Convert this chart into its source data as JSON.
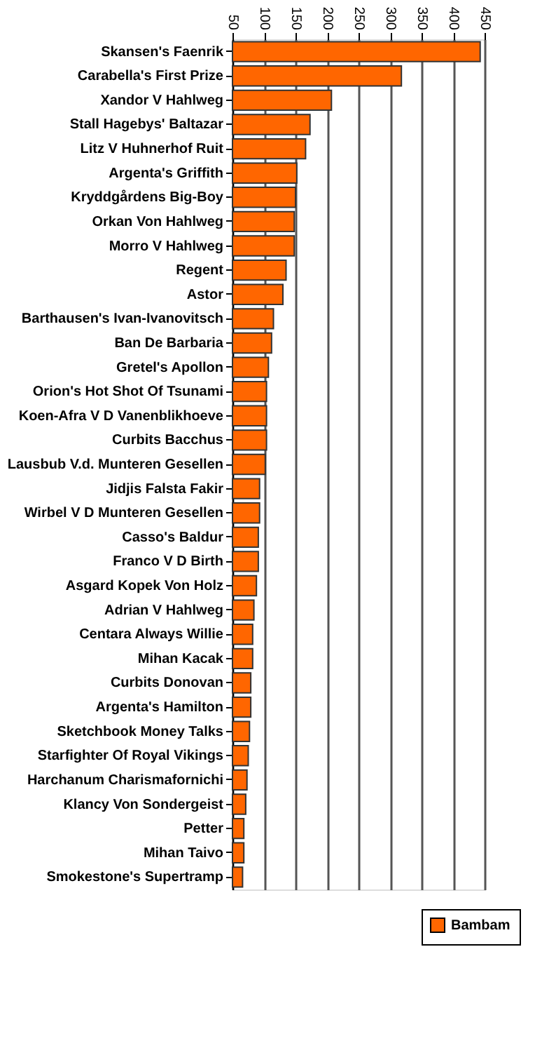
{
  "chart_data": {
    "type": "bar",
    "orientation": "horizontal",
    "categories": [
      "Skansen's Faenrik",
      "Carabella's First Prize",
      "Xandor V Hahlweg",
      "Stall Hagebys' Baltazar",
      "Litz V Huhnerhof Ruit",
      "Argenta's Griffith",
      "Kryddgårdens Big-Boy",
      "Orkan Von Hahlweg",
      "Morro V Hahlweg",
      "Regent",
      "Astor",
      "Barthausen's Ivan-Ivanovitsch",
      "Ban De Barbaria",
      "Gretel's Apollon",
      "Orion's Hot Shot Of Tsunami",
      "Koen-Afra V D Vanenblikhoeve",
      "Curbits Bacchus",
      "Lausbub V.d. Munteren Gesellen",
      "Jidjis Falsta Fakir",
      "Wirbel V D Munteren Gesellen",
      "Casso's Baldur",
      "Franco V D Birth",
      "Asgard Kopek Von Holz",
      "Adrian V Hahlweg",
      "Centara Always Willie",
      "Mihan Kacak",
      "Curbits Donovan",
      "Argenta's Hamilton",
      "Sketchbook Money Talks",
      "Starfighter Of Royal Vikings",
      "Harchanum Charismafornichi",
      "Klancy Von Sondergeist",
      "Petter",
      "Mihan Taivo",
      "Smokestone's Supertramp"
    ],
    "series": [
      {
        "name": "Bambam",
        "color": "#ff6600",
        "values": [
          443,
          318,
          207,
          173,
          166,
          152,
          150,
          148,
          148,
          135,
          130,
          115,
          112,
          107,
          104,
          104,
          104,
          102,
          93,
          93,
          91,
          91,
          88,
          84,
          82,
          82,
          79,
          79,
          77,
          75,
          73,
          71,
          68,
          68,
          66
        ]
      }
    ],
    "xlim": [
      50,
      450
    ],
    "xticks": [
      50,
      100,
      150,
      200,
      250,
      300,
      350,
      400,
      450
    ],
    "grid": "x",
    "legend": "bottom right"
  }
}
